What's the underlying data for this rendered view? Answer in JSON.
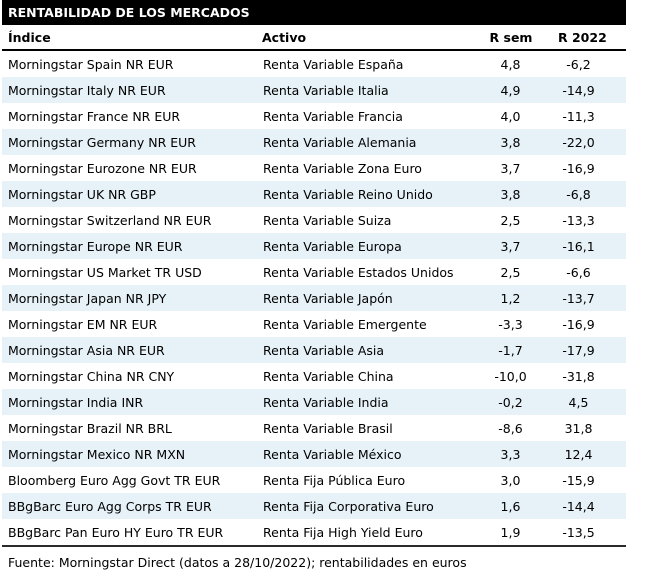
{
  "title": "RENTABILIDAD DE LOS MERCADOS",
  "footer": "Fuente: Morningstar Direct (datos a 28/10/2022); rentabilidades en euros",
  "colors": {
    "title_bar_bg": "#000000",
    "title_bar_text": "#ffffff",
    "alt_row_bg": "#e7f2f8",
    "text": "#000000"
  },
  "table": {
    "columns": {
      "indice": "Índice",
      "activo": "Activo",
      "r_sem": "R sem",
      "r_2022": "R 2022"
    },
    "rows": [
      {
        "indice": "Morningstar Spain NR EUR",
        "activo": "Renta Variable España",
        "r_sem": "4,8",
        "r_2022": "-6,2"
      },
      {
        "indice": "Morningstar Italy NR EUR",
        "activo": "Renta Variable Italia",
        "r_sem": "4,9",
        "r_2022": "-14,9"
      },
      {
        "indice": "Morningstar France NR EUR",
        "activo": "Renta Variable Francia",
        "r_sem": "4,0",
        "r_2022": "-11,3"
      },
      {
        "indice": "Morningstar Germany NR EUR",
        "activo": "Renta Variable Alemania",
        "r_sem": "3,8",
        "r_2022": "-22,0"
      },
      {
        "indice": "Morningstar Eurozone NR EUR",
        "activo": "Renta Variable Zona Euro",
        "r_sem": "3,7",
        "r_2022": "-16,9"
      },
      {
        "indice": "Morningstar UK NR GBP",
        "activo": "Renta Variable Reino Unido",
        "r_sem": "3,8",
        "r_2022": "-6,8"
      },
      {
        "indice": "Morningstar Switzerland NR EUR",
        "activo": "Renta Variable Suiza",
        "r_sem": "2,5",
        "r_2022": "-13,3"
      },
      {
        "indice": "Morningstar Europe NR EUR",
        "activo": "Renta Variable Europa",
        "r_sem": "3,7",
        "r_2022": "-16,1"
      },
      {
        "indice": "Morningstar US Market TR USD",
        "activo": "Renta Variable Estados Unidos",
        "r_sem": "2,5",
        "r_2022": "-6,6"
      },
      {
        "indice": "Morningstar Japan NR JPY",
        "activo": "Renta Variable Japón",
        "r_sem": "1,2",
        "r_2022": "-13,7"
      },
      {
        "indice": "Morningstar EM NR EUR",
        "activo": "Renta Variable Emergente",
        "r_sem": "-3,3",
        "r_2022": "-16,9"
      },
      {
        "indice": "Morningstar Asia NR EUR",
        "activo": "Renta Variable Asia",
        "r_sem": "-1,7",
        "r_2022": "-17,9"
      },
      {
        "indice": "Morningstar China NR CNY",
        "activo": "Renta Variable China",
        "r_sem": "-10,0",
        "r_2022": "-31,8"
      },
      {
        "indice": "Morningstar India INR",
        "activo": "Renta Variable India",
        "r_sem": "-0,2",
        "r_2022": "4,5"
      },
      {
        "indice": "Morningstar Brazil NR BRL",
        "activo": "Renta Variable Brasil",
        "r_sem": "-8,6",
        "r_2022": "31,8"
      },
      {
        "indice": "Morningstar Mexico NR MXN",
        "activo": "Renta Variable México",
        "r_sem": "3,3",
        "r_2022": "12,4"
      },
      {
        "indice": "Bloomberg Euro Agg Govt TR EUR",
        "activo": "Renta Fija Pública Euro",
        "r_sem": "3,0",
        "r_2022": "-15,9"
      },
      {
        "indice": "BBgBarc Euro Agg Corps TR EUR",
        "activo": "Renta Fija Corporativa Euro",
        "r_sem": "1,6",
        "r_2022": "-14,4"
      },
      {
        "indice": "BBgBarc Pan Euro HY Euro TR EUR",
        "activo": "Renta Fija High Yield Euro",
        "r_sem": "1,9",
        "r_2022": "-13,5"
      }
    ]
  }
}
